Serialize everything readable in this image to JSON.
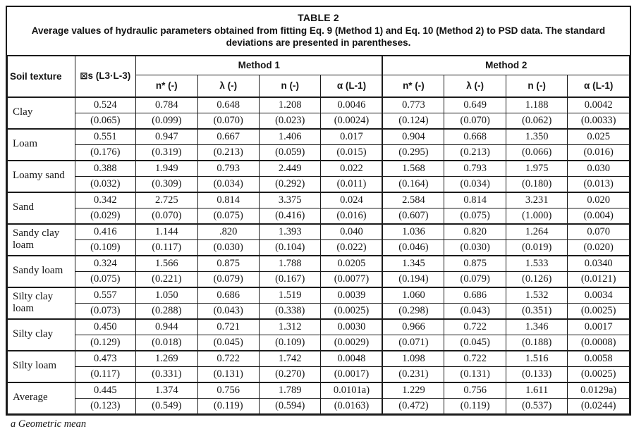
{
  "table": {
    "title": "TABLE 2",
    "subtitle": "Average values of hydraulic parameters obtained from fitting Eq. 9 (Method 1) and Eq. 10 (Method 2) to PSD data. The standard deviations are presented in parentheses.",
    "headers": {
      "soil_texture": "Soil texture",
      "theta_s": "⊠s (L3·L-3)",
      "method1": "Method 1",
      "method2": "Method 2",
      "sub": [
        "n* (-)",
        "λ (-)",
        "n (-)",
        "α (L-1)",
        "n* (-)",
        "λ (-)",
        "n (-)",
        "α (L-1)"
      ]
    },
    "rows": [
      {
        "name": "Clay",
        "values": [
          "0.524",
          "0.784",
          "0.648",
          "1.208",
          "0.0046",
          "0.773",
          "0.649",
          "1.188",
          "0.0042"
        ],
        "stds": [
          "(0.065)",
          "(0.099)",
          "(0.070)",
          "(0.023)",
          "(0.0024)",
          "(0.124)",
          "(0.070)",
          "(0.062)",
          "(0.0033)"
        ]
      },
      {
        "name": "Loam",
        "values": [
          "0.551",
          "0.947",
          "0.667",
          "1.406",
          "0.017",
          "0.904",
          "0.668",
          "1.350",
          "0.025"
        ],
        "stds": [
          "(0.176)",
          "(0.319)",
          "(0.213)",
          "(0.059)",
          "(0.015)",
          "(0.295)",
          "(0.213)",
          "(0.066)",
          "(0.016)"
        ]
      },
      {
        "name": "Loamy sand",
        "values": [
          "0.388",
          "1.949",
          "0.793",
          "2.449",
          "0.022",
          "1.568",
          "0.793",
          "1.975",
          "0.030"
        ],
        "stds": [
          "(0.032)",
          "(0.309)",
          "(0.034)",
          "(0.292)",
          "(0.011)",
          "(0.164)",
          "(0.034)",
          "(0.180)",
          "(0.013)"
        ]
      },
      {
        "name": "Sand",
        "values": [
          "0.342",
          "2.725",
          "0.814",
          "3.375",
          "0.024",
          "2.584",
          "0.814",
          "3.231",
          "0.020"
        ],
        "stds": [
          "(0.029)",
          "(0.070)",
          "(0.075)",
          "(0.416)",
          "(0.016)",
          "(0.607)",
          "(0.075)",
          "(1.000)",
          "(0.004)"
        ]
      },
      {
        "name": "Sandy clay loam",
        "values": [
          "0.416",
          "1.144",
          ".820",
          "1.393",
          "0.040",
          "1.036",
          "0.820",
          "1.264",
          "0.070"
        ],
        "stds": [
          "(0.109)",
          "(0.117)",
          "(0.030)",
          "(0.104)",
          "(0.022)",
          "(0.046)",
          "(0.030)",
          "(0.019)",
          "(0.020)"
        ]
      },
      {
        "name": "Sandy loam",
        "values": [
          "0.324",
          "1.566",
          "0.875",
          "1.788",
          "0.0205",
          "1.345",
          "0.875",
          "1.533",
          "0.0340"
        ],
        "stds": [
          "(0.075)",
          "(0.221)",
          "(0.079)",
          "(0.167)",
          "(0.0077)",
          "(0.194)",
          "(0.079)",
          "(0.126)",
          "(0.0121)"
        ]
      },
      {
        "name": "Silty clay loam",
        "values": [
          "0.557",
          "1.050",
          "0.686",
          "1.519",
          "0.0039",
          "1.060",
          "0.686",
          "1.532",
          "0.0034"
        ],
        "stds": [
          "(0.073)",
          "(0.288)",
          "(0.043)",
          "(0.338)",
          "(0.0025)",
          "(0.298)",
          "(0.043)",
          "(0.351)",
          "(0.0025)"
        ]
      },
      {
        "name": "Silty clay",
        "values": [
          "0.450",
          "0.944",
          "0.721",
          "1.312",
          "0.0030",
          "0.966",
          "0.722",
          "1.346",
          "0.0017"
        ],
        "stds": [
          "(0.129)",
          "(0.018)",
          "(0.045)",
          "(0.109)",
          "(0.0029)",
          "(0.071)",
          "(0.045)",
          "(0.188)",
          "(0.0008)"
        ]
      },
      {
        "name": "Silty loam",
        "values": [
          "0.473",
          "1.269",
          "0.722",
          "1.742",
          "0.0048",
          "1.098",
          "0.722",
          "1.516",
          "0.0058"
        ],
        "stds": [
          "(0.117)",
          "(0.331)",
          "(0.131)",
          "(0.270)",
          "(0.0017)",
          "(0.231)",
          "(0.131)",
          "(0.133)",
          "(0.0025)"
        ]
      },
      {
        "name": "Average",
        "values": [
          "0.445",
          "1.374",
          "0.756",
          "1.789",
          "0.0101a)",
          "1.229",
          "0.756",
          "1.611",
          "0.0129a)"
        ],
        "stds": [
          "(0.123)",
          "(0.549)",
          "(0.119)",
          "(0.594)",
          "(0.0163)",
          "(0.472)",
          "(0.119)",
          "(0.537)",
          "(0.0244)"
        ]
      }
    ],
    "footnote": "a Geometric mean"
  }
}
